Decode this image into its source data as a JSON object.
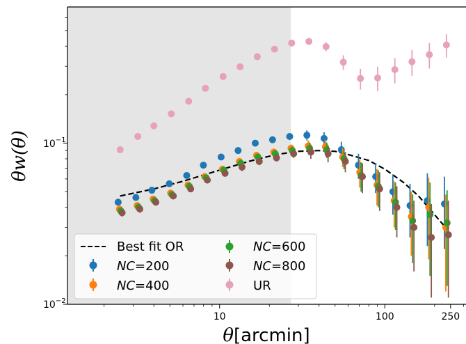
{
  "chart_data": {
    "type": "scatter",
    "xlabel_math": "θ",
    "xlabel_unit": "[arcmin]",
    "ylabel": "θw(θ)",
    "xscale": "log",
    "yscale": "log",
    "xlim": [
      1.2,
      310
    ],
    "ylim": [
      0.01,
      0.7
    ],
    "x_ticks": [
      10,
      100,
      250
    ],
    "x_tick_labels": [
      "10",
      "100",
      "250"
    ],
    "y_tick_labels": {
      "e-1": "10",
      "e-2": "10",
      "exp_m1": "−1",
      "exp_m2": "−2"
    },
    "shaded_region": {
      "x_from": 1.2,
      "x_to": 27,
      "color": "#e5e5e5"
    },
    "grid": false,
    "legend_placement": "lower-left",
    "legend": {
      "best_fit": "Best fit OR",
      "nc200": "=200",
      "nc400": "=400",
      "nc600": "=600",
      "nc800": "=800",
      "ur": "UR",
      "nc_prefix": "NC"
    },
    "x": [
      2.5,
      3.2,
      4.0,
      5.1,
      6.5,
      8.2,
      10.5,
      13.3,
      16.9,
      21.5,
      27.3,
      34.7,
      44.1,
      56.1,
      71.2,
      90.5,
      115,
      146,
      186,
      236
    ],
    "series": [
      {
        "key": "best_fit",
        "style": "dashed-line",
        "color": "#000000",
        "x": [
          2.5,
          4,
          6,
          10,
          15,
          22,
          30,
          40,
          50,
          60,
          80,
          100,
          130,
          160,
          200,
          240
        ],
        "values": [
          0.047,
          0.052,
          0.058,
          0.068,
          0.077,
          0.085,
          0.089,
          0.09,
          0.089,
          0.085,
          0.078,
          0.069,
          0.057,
          0.047,
          0.036,
          0.029
        ]
      },
      {
        "key": "nc200",
        "color": "#1f77b4",
        "offset": -0.012,
        "values": [
          0.043,
          0.046,
          0.051,
          0.056,
          0.063,
          0.073,
          0.082,
          0.09,
          0.1,
          0.105,
          0.11,
          0.112,
          0.107,
          0.091,
          0.073,
          0.062,
          0.05,
          0.041,
          0.044,
          0.042
        ],
        "lo": [
          0.041,
          0.044,
          0.049,
          0.054,
          0.061,
          0.071,
          0.079,
          0.087,
          0.097,
          0.101,
          0.105,
          0.104,
          0.097,
          0.08,
          0.06,
          0.049,
          0.036,
          0.026,
          0.023,
          0.022
        ],
        "hi": [
          0.045,
          0.048,
          0.053,
          0.058,
          0.065,
          0.075,
          0.085,
          0.093,
          0.103,
          0.109,
          0.115,
          0.12,
          0.117,
          0.102,
          0.086,
          0.075,
          0.064,
          0.056,
          0.065,
          0.062
        ]
      },
      {
        "key": "nc400",
        "color": "#ff7f0e",
        "offset": -0.004,
        "values": [
          0.039,
          0.041,
          0.045,
          0.049,
          0.055,
          0.062,
          0.069,
          0.077,
          0.084,
          0.088,
          0.093,
          0.096,
          0.095,
          0.082,
          0.066,
          0.055,
          0.044,
          0.035,
          0.04,
          0.03
        ],
        "lo": [
          0.037,
          0.039,
          0.043,
          0.047,
          0.053,
          0.06,
          0.066,
          0.073,
          0.08,
          0.084,
          0.088,
          0.088,
          0.085,
          0.071,
          0.053,
          0.041,
          0.03,
          0.02,
          0.019,
          0.012
        ],
        "hi": [
          0.041,
          0.043,
          0.047,
          0.051,
          0.057,
          0.064,
          0.072,
          0.081,
          0.088,
          0.092,
          0.098,
          0.104,
          0.105,
          0.093,
          0.079,
          0.069,
          0.058,
          0.05,
          0.061,
          0.048
        ]
      },
      {
        "key": "nc600",
        "color": "#2ca02c",
        "offset": 0.004,
        "values": [
          0.038,
          0.04,
          0.044,
          0.048,
          0.054,
          0.061,
          0.068,
          0.075,
          0.082,
          0.086,
          0.09,
          0.093,
          0.091,
          0.08,
          0.063,
          0.054,
          0.043,
          0.033,
          0.036,
          0.032
        ],
        "lo": [
          0.036,
          0.038,
          0.042,
          0.046,
          0.052,
          0.059,
          0.065,
          0.071,
          0.078,
          0.082,
          0.085,
          0.085,
          0.081,
          0.069,
          0.05,
          0.04,
          0.029,
          0.018,
          0.015,
          0.013
        ],
        "hi": [
          0.04,
          0.042,
          0.046,
          0.05,
          0.056,
          0.063,
          0.071,
          0.079,
          0.086,
          0.09,
          0.095,
          0.101,
          0.101,
          0.091,
          0.076,
          0.068,
          0.057,
          0.048,
          0.057,
          0.051
        ]
      },
      {
        "key": "nc800",
        "color": "#8c564b",
        "offset": 0.012,
        "values": [
          0.037,
          0.039,
          0.043,
          0.047,
          0.052,
          0.059,
          0.065,
          0.071,
          0.077,
          0.081,
          0.086,
          0.088,
          0.086,
          0.077,
          0.062,
          0.052,
          0.04,
          0.03,
          0.026,
          0.027
        ],
        "lo": [
          0.035,
          0.037,
          0.041,
          0.045,
          0.05,
          0.057,
          0.062,
          0.067,
          0.073,
          0.077,
          0.081,
          0.08,
          0.076,
          0.066,
          0.049,
          0.038,
          0.026,
          0.016,
          0.011,
          0.011
        ],
        "hi": [
          0.039,
          0.041,
          0.045,
          0.049,
          0.054,
          0.061,
          0.068,
          0.075,
          0.081,
          0.085,
          0.091,
          0.096,
          0.096,
          0.088,
          0.075,
          0.066,
          0.054,
          0.044,
          0.042,
          0.044
        ]
      },
      {
        "key": "ur",
        "color": "#e7a1bd",
        "offset": 0,
        "x": [
          2.5,
          3.2,
          4.0,
          5.1,
          6.5,
          8.2,
          10.5,
          13.3,
          16.9,
          21.5,
          27.3,
          34.7,
          44.1,
          56.1,
          71.2,
          90.5,
          115,
          146,
          186,
          236
        ],
        "values": [
          0.091,
          0.11,
          0.128,
          0.152,
          0.182,
          0.219,
          0.259,
          0.298,
          0.344,
          0.383,
          0.418,
          0.428,
          0.397,
          0.318,
          0.252,
          0.254,
          0.286,
          0.32,
          0.354,
          0.407
        ],
        "lo": [
          0.088,
          0.107,
          0.125,
          0.148,
          0.177,
          0.213,
          0.252,
          0.29,
          0.335,
          0.373,
          0.405,
          0.41,
          0.372,
          0.285,
          0.215,
          0.21,
          0.235,
          0.262,
          0.29,
          0.34
        ],
        "hi": [
          0.094,
          0.113,
          0.131,
          0.156,
          0.187,
          0.225,
          0.266,
          0.306,
          0.353,
          0.393,
          0.431,
          0.446,
          0.422,
          0.351,
          0.289,
          0.298,
          0.337,
          0.378,
          0.418,
          0.474
        ]
      }
    ]
  }
}
